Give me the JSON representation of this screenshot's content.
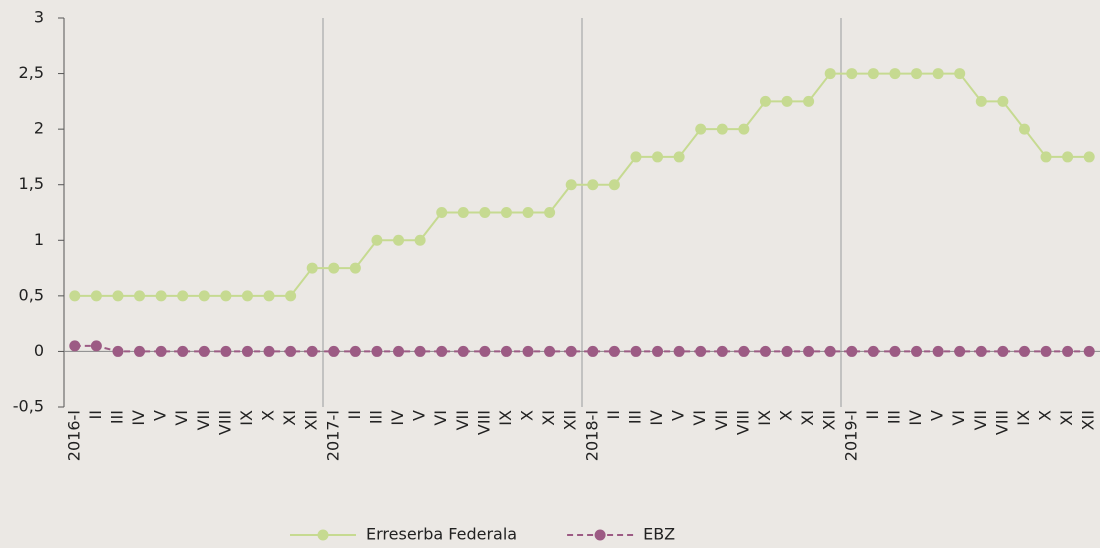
{
  "chart_data": {
    "type": "line",
    "categories": [
      "2016-I",
      "II",
      "III",
      "IV",
      "V",
      "VI",
      "VII",
      "VIII",
      "IX",
      "X",
      "XI",
      "XII",
      "2017-I",
      "II",
      "III",
      "IV",
      "V",
      "VI",
      "VII",
      "VIII",
      "IX",
      "X",
      "XI",
      "XII",
      "2018-I",
      "II",
      "III",
      "IV",
      "V",
      "VI",
      "VII",
      "VIII",
      "IX",
      "X",
      "XI",
      "XII",
      "2019-I",
      "II",
      "III",
      "IV",
      "V",
      "VI",
      "VII",
      "VIII",
      "IX",
      "X",
      "XI",
      "XII"
    ],
    "series": [
      {
        "name": "Erreserba Federala",
        "color": "#c6da91",
        "dash": false,
        "values": [
          0.5,
          0.5,
          0.5,
          0.5,
          0.5,
          0.5,
          0.5,
          0.5,
          0.5,
          0.5,
          0.5,
          0.75,
          0.75,
          0.75,
          1,
          1,
          1,
          1.25,
          1.25,
          1.25,
          1.25,
          1.25,
          1.25,
          1.5,
          1.5,
          1.5,
          1.75,
          1.75,
          1.75,
          2,
          2,
          2,
          2.25,
          2.25,
          2.25,
          2.5,
          2.5,
          2.5,
          2.5,
          2.5,
          2.5,
          2.5,
          2.25,
          2.25,
          2,
          1.75,
          1.75,
          1.75
        ]
      },
      {
        "name": "EBZ",
        "color": "#9c5b84",
        "dash": true,
        "values": [
          0.05,
          0.05,
          0,
          0,
          0,
          0,
          0,
          0,
          0,
          0,
          0,
          0,
          0,
          0,
          0,
          0,
          0,
          0,
          0,
          0,
          0,
          0,
          0,
          0,
          0,
          0,
          0,
          0,
          0,
          0,
          0,
          0,
          0,
          0,
          0,
          0,
          0,
          0,
          0,
          0,
          0,
          0,
          0,
          0,
          0,
          0,
          0,
          0
        ]
      }
    ],
    "ylim": [
      -0.5,
      3
    ],
    "yticks": [
      {
        "value": -0.5,
        "label": "-0,5"
      },
      0,
      {
        "value": 0.5,
        "label": "0,5"
      },
      1,
      {
        "value": 1.5,
        "label": "1,5"
      },
      2,
      {
        "value": 2.5,
        "label": "2,5"
      },
      3
    ],
    "legend": "bottom"
  }
}
